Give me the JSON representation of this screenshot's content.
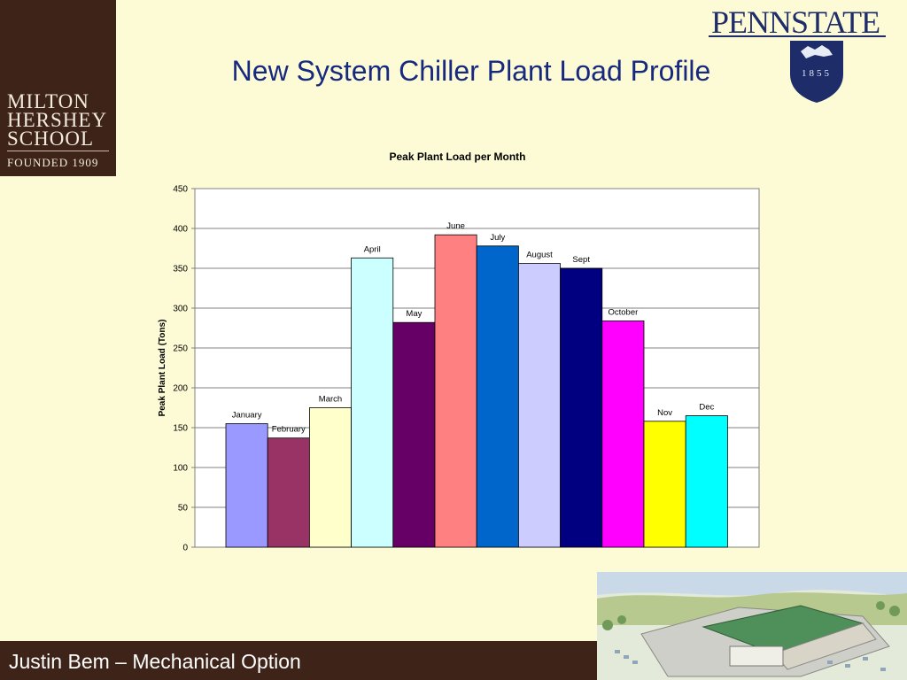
{
  "slide": {
    "title": "New System Chiller Plant Load Profile",
    "footer": "Justin Bem – Mechanical Option"
  },
  "logos": {
    "mhs_line1": "MILTON",
    "mhs_line2": "HERSHEY",
    "mhs_line3": "SCHOOL",
    "mhs_founded": "FOUNDED 1909",
    "pennstate_word": "PENNSTATE",
    "pennstate_year": "1855"
  },
  "colors": {
    "background": "#fdfbd5",
    "title": "#17297e",
    "footer_bg": "#3e2418",
    "pennstate_navy": "#1e2d69"
  },
  "chart_data": {
    "type": "bar",
    "title": "Peak Plant Load per Month",
    "xlabel": "",
    "ylabel": "Peak Plant Load (Tons)",
    "ylim": [
      0,
      450
    ],
    "yticks": [
      0,
      50,
      100,
      150,
      200,
      250,
      300,
      350,
      400,
      450
    ],
    "grid": true,
    "legend": "none",
    "categories": [
      "January",
      "February",
      "March",
      "April",
      "May",
      "June",
      "July",
      "August",
      "Sept",
      "October",
      "Nov",
      "Dec"
    ],
    "values": [
      155,
      137,
      175,
      363,
      282,
      392,
      378,
      356,
      350,
      284,
      158,
      165
    ],
    "bar_colors": [
      "#9999ff",
      "#993366",
      "#ffffcc",
      "#ccffff",
      "#660066",
      "#ff8080",
      "#0066cc",
      "#ccccff",
      "#000080",
      "#ff00ff",
      "#ffff00",
      "#00ffff"
    ]
  }
}
